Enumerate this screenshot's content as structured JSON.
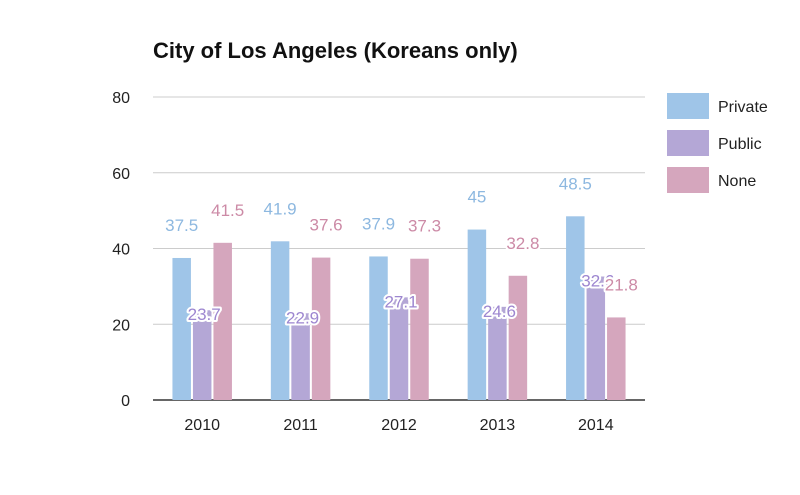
{
  "chart_data": {
    "type": "bar",
    "title": "City of Los Angeles (Koreans only)",
    "categories": [
      "2010",
      "2011",
      "2012",
      "2013",
      "2014"
    ],
    "series": [
      {
        "name": "Private",
        "values": [
          37.5,
          41.9,
          37.9,
          45,
          48.5
        ],
        "color": "#9fc5e8"
      },
      {
        "name": "Public",
        "values": [
          23.7,
          22.9,
          27.1,
          24.6,
          32.6
        ],
        "color": "#b4a7d6"
      },
      {
        "name": "None",
        "values": [
          41.5,
          37.6,
          37.3,
          32.8,
          21.8
        ],
        "color": "#d5a6bd"
      }
    ],
    "y_ticks": [
      "0",
      "20",
      "40",
      "60",
      "80"
    ],
    "ylim": [
      0,
      80
    ],
    "grid": true,
    "legend_position": "right",
    "data_labels": true,
    "label_colors": {
      "Private": "#8db8e0",
      "Public": "#9d86d0",
      "None": "#cc8aa6"
    }
  }
}
